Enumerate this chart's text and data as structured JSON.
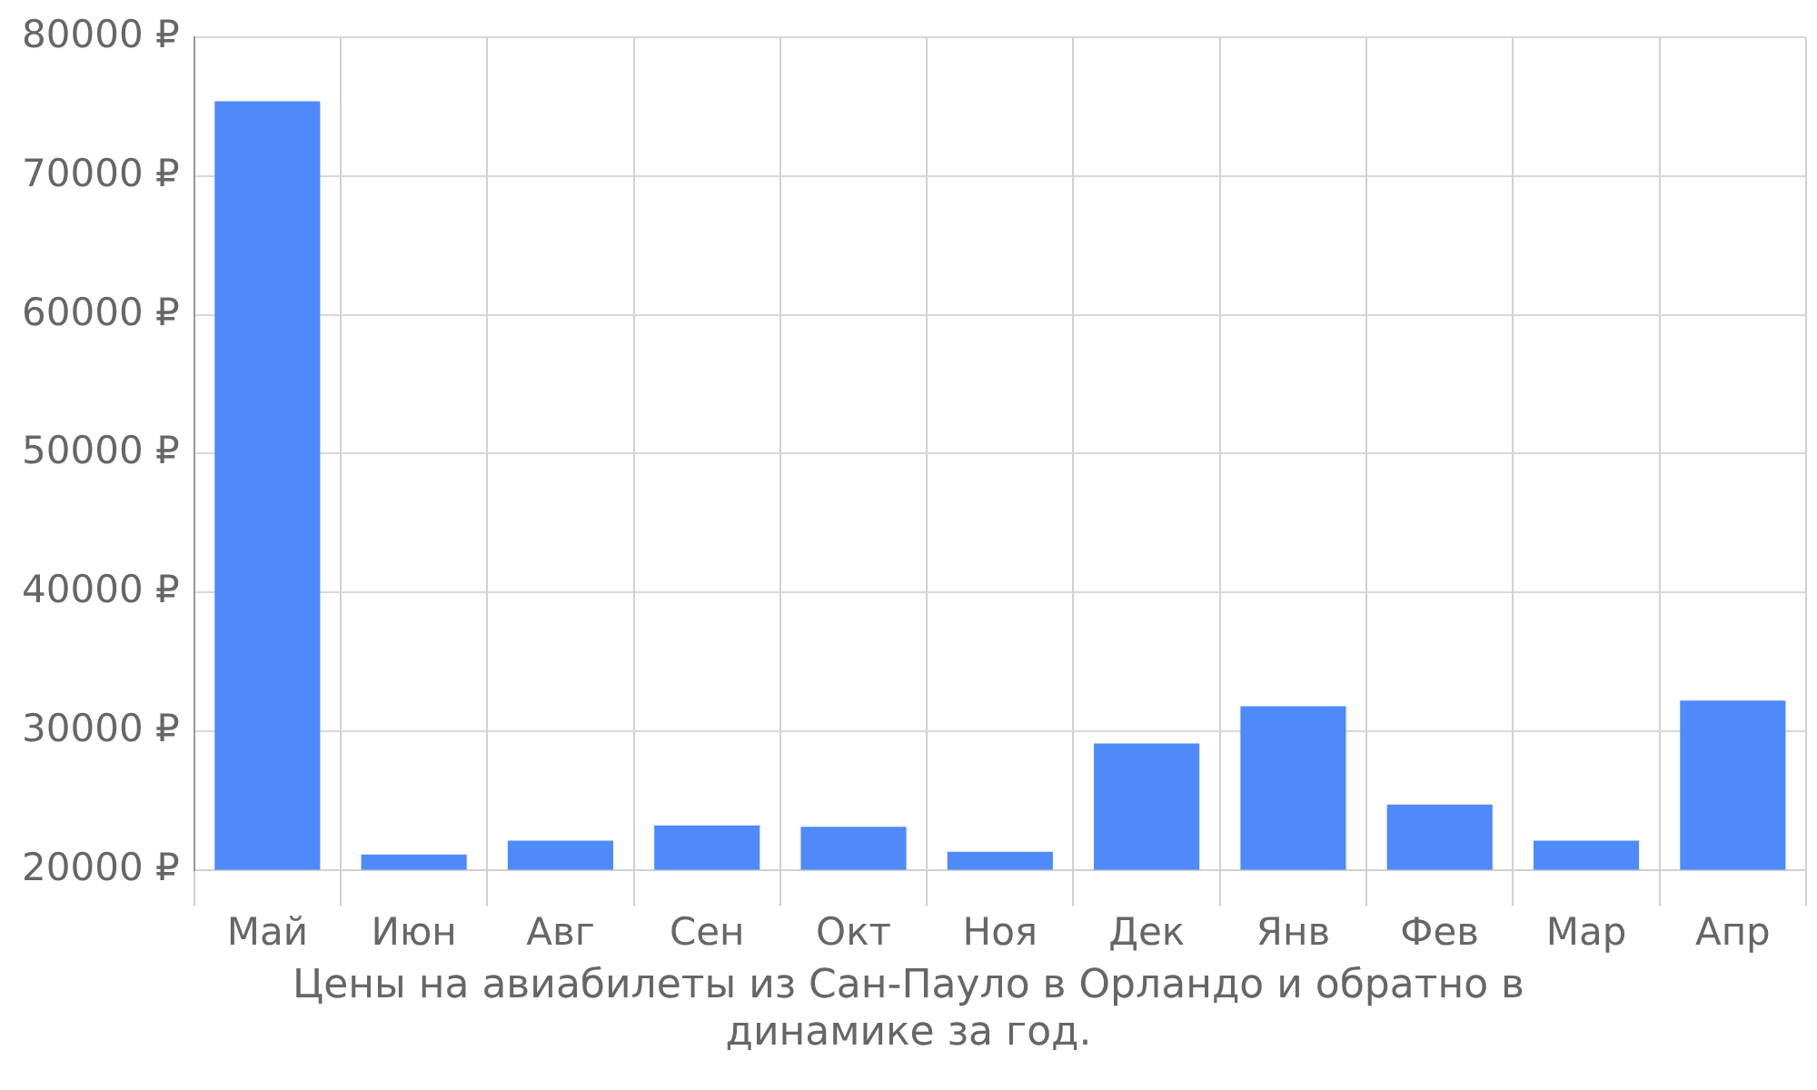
{
  "chart_data": {
    "type": "bar",
    "title": "Цены на авиабилеты из Сан-Пауло в Орландо и обратно в динамике за год.",
    "categories": [
      "Май",
      "Июн",
      "Авг",
      "Сен",
      "Окт",
      "Ноя",
      "Дек",
      "Янв",
      "Фев",
      "Мар",
      "Апр"
    ],
    "values": [
      75400,
      21100,
      22100,
      23200,
      23100,
      21300,
      29100,
      31800,
      24700,
      22100,
      32200
    ],
    "color": "#4e8af9",
    "ylim": [
      20000,
      80000
    ],
    "yticks": [
      {
        "value": 20000,
        "label": "20000 ₽"
      },
      {
        "value": 30000,
        "label": "30000 ₽"
      },
      {
        "value": 40000,
        "label": "40000 ₽"
      },
      {
        "value": 50000,
        "label": "50000 ₽"
      },
      {
        "value": 60000,
        "label": "60000 ₽"
      },
      {
        "value": 70000,
        "label": "70000 ₽"
      },
      {
        "value": 80000,
        "label": "80000 ₽"
      }
    ],
    "grid": true
  }
}
